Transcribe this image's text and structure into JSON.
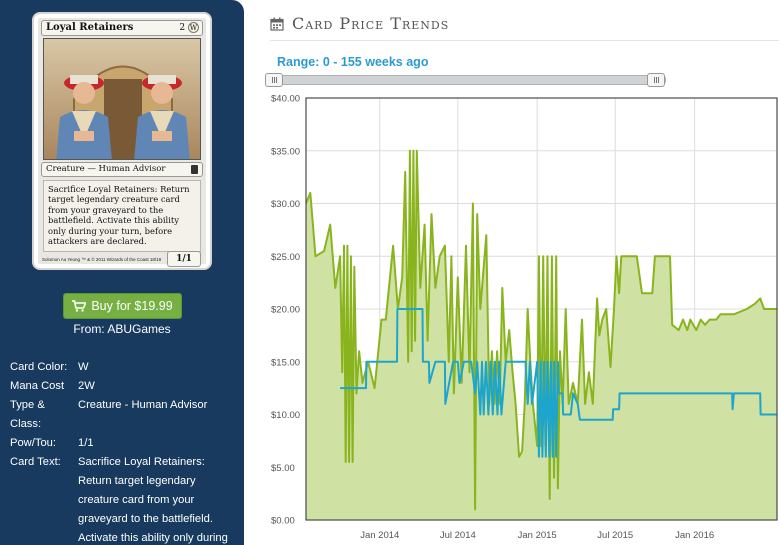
{
  "card": {
    "name": "Loyal Retainers",
    "cost_symbol": "W",
    "type_line": "Creature — Human Advisor",
    "rules_text": "Sacrifice Loyal Retainers: Return target legendary creature card from your graveyard to the battlefield. Activate this ability only during your turn, before attackers are declared.",
    "power_toughness": "1/1",
    "artist": "Solomon Au Yeung",
    "copyright": "™ & © 2011 Wizards of the Coast 18/18"
  },
  "buy": {
    "label": "Buy for $19.99",
    "from_label": "From:",
    "vendor": "ABUGames"
  },
  "details": [
    {
      "label": "Card Color:",
      "value": "W"
    },
    {
      "label": "Mana Cost",
      "value": "2W"
    },
    {
      "label": "Type & Class:",
      "value": "Creature - Human Advisor"
    },
    {
      "label": "Pow/Tou:",
      "value": "1/1"
    },
    {
      "label": "Card Text:",
      "value": "Sacrifice Loyal Retainers: Return target legendary creature card from your graveyard to the battlefield. Activate this ability only during your turn, before attackers are"
    }
  ],
  "price_trends": {
    "title": "Card Price Trends",
    "range_label": "Range: 0 - 155 weeks ago"
  },
  "colors": {
    "panel_bg": "#173a5e",
    "buy_green": "#76b043",
    "range_blue": "#2a9bd0",
    "green_series": "#8ab41e",
    "green_fill": "#cfe2a4",
    "blue_series": "#1ea5cc"
  },
  "chart_data": {
    "type": "area",
    "title": "",
    "xlabel": "",
    "ylabel": "",
    "ylim": [
      0,
      40
    ],
    "y_ticks": [
      "$0.00",
      "$5.00",
      "$10.00",
      "$15.00",
      "$20.00",
      "$25.00",
      "$30.00",
      "$35.00",
      "$40.00"
    ],
    "x_range": [
      "2013-07-14",
      "2016-07-10"
    ],
    "x_ticks": [
      {
        "date": "2014-01-01",
        "label": "Jan 2014"
      },
      {
        "date": "2014-07-01",
        "label": "Jul 2014"
      },
      {
        "date": "2015-01-01",
        "label": "Jan 2015"
      },
      {
        "date": "2015-07-01",
        "label": "Jul 2015"
      },
      {
        "date": "2016-01-01",
        "label": "Jan 2016"
      }
    ],
    "grid": true,
    "series": [
      {
        "style": "area",
        "points": [
          [
            "2013-07-14",
            30
          ],
          [
            "2013-07-24",
            31
          ],
          [
            "2013-08-05",
            25
          ],
          [
            "2013-08-25",
            25.5
          ],
          [
            "2013-09-08",
            28
          ],
          [
            "2013-09-20",
            22
          ],
          [
            "2013-10-01",
            25
          ],
          [
            "2013-10-06",
            14
          ],
          [
            "2013-10-10",
            26
          ],
          [
            "2013-10-14",
            5.5
          ],
          [
            "2013-10-18",
            26
          ],
          [
            "2013-10-22",
            5.5
          ],
          [
            "2013-10-26",
            25
          ],
          [
            "2013-10-30",
            5.5
          ],
          [
            "2013-11-03",
            24
          ],
          [
            "2013-11-08",
            12
          ],
          [
            "2013-11-14",
            16
          ],
          [
            "2013-11-22",
            13
          ],
          [
            "2013-12-05",
            15
          ],
          [
            "2013-12-20",
            12.5
          ],
          [
            "2014-01-05",
            19
          ],
          [
            "2014-01-15",
            19
          ],
          [
            "2014-02-01",
            26
          ],
          [
            "2014-02-12",
            20
          ],
          [
            "2014-02-22",
            23
          ],
          [
            "2014-03-01",
            33
          ],
          [
            "2014-03-08",
            15
          ],
          [
            "2014-03-12",
            35
          ],
          [
            "2014-03-16",
            16
          ],
          [
            "2014-03-20",
            35
          ],
          [
            "2014-03-24",
            17
          ],
          [
            "2014-03-28",
            35
          ],
          [
            "2014-04-05",
            22
          ],
          [
            "2014-04-15",
            28
          ],
          [
            "2014-04-22",
            17
          ],
          [
            "2014-05-01",
            29
          ],
          [
            "2014-05-10",
            22
          ],
          [
            "2014-05-20",
            25
          ],
          [
            "2014-06-01",
            26
          ],
          [
            "2014-06-10",
            15
          ],
          [
            "2014-06-16",
            25
          ],
          [
            "2014-06-22",
            12
          ],
          [
            "2014-07-01",
            23
          ],
          [
            "2014-07-10",
            13
          ],
          [
            "2014-07-20",
            26
          ],
          [
            "2014-07-28",
            14
          ],
          [
            "2014-08-05",
            30
          ],
          [
            "2014-08-10",
            1
          ],
          [
            "2014-08-15",
            29
          ],
          [
            "2014-08-22",
            20
          ],
          [
            "2014-09-05",
            27
          ],
          [
            "2014-09-12",
            11
          ],
          [
            "2014-09-18",
            16
          ],
          [
            "2014-09-24",
            11
          ],
          [
            "2014-09-30",
            16
          ],
          [
            "2014-10-06",
            11
          ],
          [
            "2014-10-12",
            22
          ],
          [
            "2014-10-20",
            15
          ],
          [
            "2014-10-28",
            18
          ],
          [
            "2014-11-05",
            14
          ],
          [
            "2014-11-12",
            11
          ],
          [
            "2014-11-20",
            6
          ],
          [
            "2014-11-27",
            6.5
          ],
          [
            "2014-12-03",
            11
          ],
          [
            "2014-12-10",
            20
          ],
          [
            "2014-12-16",
            15
          ],
          [
            "2014-12-22",
            11
          ],
          [
            "2015-01-01",
            7
          ],
          [
            "2015-01-05",
            25
          ],
          [
            "2015-01-10",
            7
          ],
          [
            "2015-01-15",
            25
          ],
          [
            "2015-01-20",
            7
          ],
          [
            "2015-01-25",
            25
          ],
          [
            "2015-01-30",
            2
          ],
          [
            "2015-02-04",
            25
          ],
          [
            "2015-02-09",
            4
          ],
          [
            "2015-02-14",
            25
          ],
          [
            "2015-02-18",
            3
          ],
          [
            "2015-02-23",
            16
          ],
          [
            "2015-03-01",
            11
          ],
          [
            "2015-03-08",
            20
          ],
          [
            "2015-03-15",
            11
          ],
          [
            "2015-03-25",
            13
          ],
          [
            "2015-04-05",
            11
          ],
          [
            "2015-04-15",
            19
          ],
          [
            "2015-04-22",
            11
          ],
          [
            "2015-05-01",
            14
          ],
          [
            "2015-05-10",
            11
          ],
          [
            "2015-05-20",
            21
          ],
          [
            "2015-05-25",
            17.5
          ],
          [
            "2015-06-01",
            19
          ],
          [
            "2015-06-10",
            20
          ],
          [
            "2015-06-20",
            14.5
          ],
          [
            "2015-06-28",
            20
          ],
          [
            "2015-07-04",
            25
          ],
          [
            "2015-07-10",
            21.5
          ],
          [
            "2015-07-15",
            25
          ],
          [
            "2015-08-01",
            25
          ],
          [
            "2015-08-20",
            25
          ],
          [
            "2015-09-01",
            21.5
          ],
          [
            "2015-09-25",
            21.5
          ],
          [
            "2015-10-01",
            25
          ],
          [
            "2015-11-05",
            25
          ],
          [
            "2015-11-10",
            18.5
          ],
          [
            "2015-11-25",
            18
          ],
          [
            "2015-12-05",
            19
          ],
          [
            "2015-12-15",
            18
          ],
          [
            "2015-12-22",
            19
          ],
          [
            "2016-01-05",
            18
          ],
          [
            "2016-01-15",
            19
          ],
          [
            "2016-01-25",
            18.5
          ],
          [
            "2016-02-05",
            19
          ],
          [
            "2016-02-20",
            19
          ],
          [
            "2016-03-01",
            19.5
          ],
          [
            "2016-04-01",
            19.5
          ],
          [
            "2016-05-01",
            20
          ],
          [
            "2016-05-20",
            20.5
          ],
          [
            "2016-06-01",
            21
          ],
          [
            "2016-06-10",
            20
          ],
          [
            "2016-07-10",
            20
          ]
        ]
      },
      {
        "style": "line",
        "points": [
          [
            "2013-10-01",
            12.5
          ],
          [
            "2013-11-30",
            12.5
          ],
          [
            "2013-12-01",
            15
          ],
          [
            "2014-01-10",
            15
          ],
          [
            "2014-01-11",
            15
          ],
          [
            "2014-02-10",
            15
          ],
          [
            "2014-02-11",
            20
          ],
          [
            "2014-04-10",
            20
          ],
          [
            "2014-04-11",
            15
          ],
          [
            "2014-04-25",
            15
          ],
          [
            "2014-04-26",
            13
          ],
          [
            "2014-05-10",
            15
          ],
          [
            "2014-06-01",
            15
          ],
          [
            "2014-06-02",
            11
          ],
          [
            "2014-06-20",
            15
          ],
          [
            "2014-07-01",
            15
          ],
          [
            "2014-07-05",
            13
          ],
          [
            "2014-07-15",
            15
          ],
          [
            "2014-08-01",
            15
          ],
          [
            "2014-08-10",
            12
          ],
          [
            "2014-08-15",
            15
          ],
          [
            "2014-08-22",
            10
          ],
          [
            "2014-08-26",
            15
          ],
          [
            "2014-08-30",
            10
          ],
          [
            "2014-09-04",
            15
          ],
          [
            "2014-09-10",
            10
          ],
          [
            "2014-09-15",
            15
          ],
          [
            "2014-09-20",
            10
          ],
          [
            "2014-09-25",
            15
          ],
          [
            "2014-10-01",
            10
          ],
          [
            "2014-10-05",
            15
          ],
          [
            "2014-10-10",
            10
          ],
          [
            "2014-10-20",
            15
          ],
          [
            "2014-11-05",
            15
          ],
          [
            "2014-11-20",
            15
          ],
          [
            "2014-12-05",
            15
          ],
          [
            "2014-12-10",
            11
          ],
          [
            "2014-12-15",
            15
          ],
          [
            "2014-12-20",
            11
          ],
          [
            "2015-01-01",
            15
          ],
          [
            "2015-01-05",
            6
          ],
          [
            "2015-01-09",
            15
          ],
          [
            "2015-01-13",
            6
          ],
          [
            "2015-01-17",
            15
          ],
          [
            "2015-01-21",
            6
          ],
          [
            "2015-01-25",
            15
          ],
          [
            "2015-01-29",
            6
          ],
          [
            "2015-02-02",
            15
          ],
          [
            "2015-02-06",
            6
          ],
          [
            "2015-02-10",
            15
          ],
          [
            "2015-02-14",
            6
          ],
          [
            "2015-02-18",
            15
          ],
          [
            "2015-02-20",
            12
          ],
          [
            "2015-03-01",
            12
          ],
          [
            "2015-03-02",
            10
          ],
          [
            "2015-03-20",
            10
          ],
          [
            "2015-03-25",
            12
          ],
          [
            "2015-04-05",
            11
          ],
          [
            "2015-04-10",
            9.5
          ],
          [
            "2015-06-25",
            9.5
          ],
          [
            "2015-06-26",
            10.5
          ],
          [
            "2015-07-10",
            10.5
          ],
          [
            "2015-07-11",
            12
          ],
          [
            "2016-03-28",
            12
          ],
          [
            "2016-03-29",
            10.5
          ],
          [
            "2016-04-01",
            12
          ],
          [
            "2016-06-01",
            12
          ],
          [
            "2016-06-02",
            10
          ],
          [
            "2016-07-10",
            10
          ]
        ]
      }
    ]
  }
}
